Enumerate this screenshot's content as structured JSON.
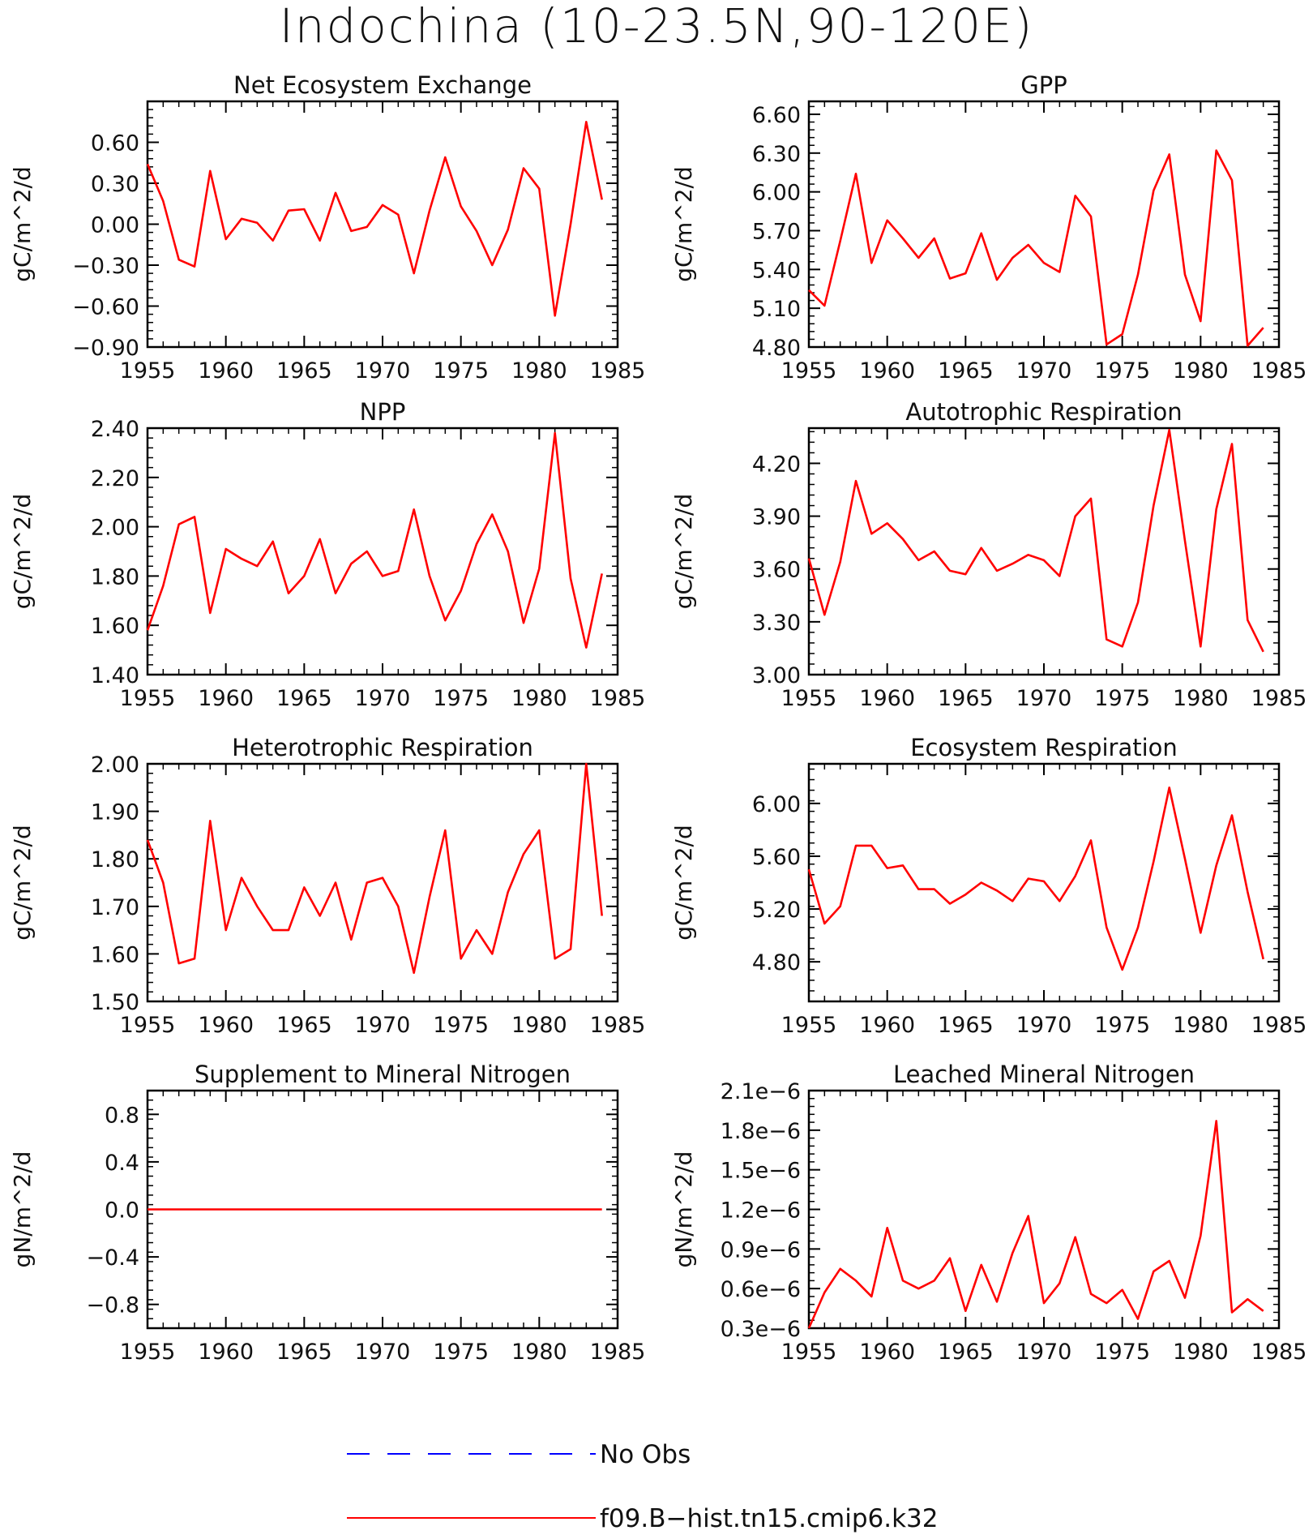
{
  "title": "Indochina (10-23.5N,90-120E)",
  "legend": {
    "entries": [
      {
        "label": "No Obs",
        "color": "#0000ff",
        "dash": true
      },
      {
        "label": "f09.B-hist.tn15.cmip6.k32",
        "color": "#ff0000",
        "dash": false
      }
    ]
  },
  "chart_data": [
    {
      "type": "line",
      "title": "Net Ecosystem Exchange",
      "ylabel": "gC/m^2/d",
      "xlim": [
        1955,
        1985
      ],
      "ylim": [
        -0.9,
        0.9
      ],
      "xticks": [
        1955,
        1960,
        1965,
        1970,
        1975,
        1980,
        1985
      ],
      "yticks": [
        -0.9,
        -0.6,
        -0.3,
        0.0,
        0.3,
        0.6
      ],
      "ytick_labels": [
        "-0.90",
        "-0.60",
        "-0.30",
        "0.00",
        "0.30",
        "0.60"
      ],
      "series": [
        {
          "name": "f09.B-hist.tn15.cmip6.k32",
          "color": "#ff0000",
          "x": [
            1955,
            1956,
            1957,
            1958,
            1959,
            1960,
            1961,
            1962,
            1963,
            1964,
            1965,
            1966,
            1967,
            1968,
            1969,
            1970,
            1971,
            1972,
            1973,
            1974,
            1975,
            1976,
            1977,
            1978,
            1979,
            1980,
            1981,
            1982,
            1983,
            1984
          ],
          "y": [
            0.44,
            0.17,
            -0.26,
            -0.31,
            0.39,
            -0.11,
            0.04,
            0.01,
            -0.12,
            0.1,
            0.11,
            -0.12,
            0.23,
            -0.05,
            -0.02,
            0.14,
            0.07,
            -0.36,
            0.1,
            0.49,
            0.13,
            -0.05,
            -0.3,
            -0.04,
            0.41,
            0.26,
            -0.67,
            0.0,
            0.75,
            0.18
          ]
        }
      ]
    },
    {
      "type": "line",
      "title": "GPP",
      "ylabel": "gC/m^2/d",
      "xlim": [
        1955,
        1985
      ],
      "ylim": [
        4.8,
        6.7
      ],
      "xticks": [
        1955,
        1960,
        1965,
        1970,
        1975,
        1980,
        1985
      ],
      "yticks": [
        4.8,
        5.1,
        5.4,
        5.7,
        6.0,
        6.3,
        6.6
      ],
      "ytick_labels": [
        "4.80",
        "5.10",
        "5.40",
        "5.70",
        "6.00",
        "6.30",
        "6.60"
      ],
      "series": [
        {
          "name": "f09.B-hist.tn15.cmip6.k32",
          "color": "#ff0000",
          "x": [
            1955,
            1956,
            1957,
            1958,
            1959,
            1960,
            1961,
            1962,
            1963,
            1964,
            1965,
            1966,
            1967,
            1968,
            1969,
            1970,
            1971,
            1972,
            1973,
            1974,
            1975,
            1976,
            1977,
            1978,
            1979,
            1980,
            1981,
            1982,
            1983,
            1984
          ],
          "y": [
            5.24,
            5.12,
            5.62,
            6.14,
            5.45,
            5.78,
            5.64,
            5.49,
            5.64,
            5.33,
            5.37,
            5.68,
            5.32,
            5.49,
            5.59,
            5.45,
            5.38,
            5.97,
            5.81,
            4.82,
            4.9,
            5.36,
            6.01,
            6.29,
            5.36,
            5.0,
            6.32,
            6.09,
            4.81,
            4.95
          ]
        }
      ]
    },
    {
      "type": "line",
      "title": "NPP",
      "ylabel": "gC/m^2/d",
      "xlim": [
        1955,
        1985
      ],
      "ylim": [
        1.4,
        2.4
      ],
      "xticks": [
        1955,
        1960,
        1965,
        1970,
        1975,
        1980,
        1985
      ],
      "yticks": [
        1.4,
        1.6,
        1.8,
        2.0,
        2.2,
        2.4
      ],
      "ytick_labels": [
        "1.40",
        "1.60",
        "1.80",
        "2.00",
        "2.20",
        "2.40"
      ],
      "series": [
        {
          "name": "f09.B-hist.tn15.cmip6.k32",
          "color": "#ff0000",
          "x": [
            1955,
            1956,
            1957,
            1958,
            1959,
            1960,
            1961,
            1962,
            1963,
            1964,
            1965,
            1966,
            1967,
            1968,
            1969,
            1970,
            1971,
            1972,
            1973,
            1974,
            1975,
            1976,
            1977,
            1978,
            1979,
            1980,
            1981,
            1982,
            1983,
            1984
          ],
          "y": [
            1.58,
            1.76,
            2.01,
            2.04,
            1.65,
            1.91,
            1.87,
            1.84,
            1.94,
            1.73,
            1.8,
            1.95,
            1.73,
            1.85,
            1.9,
            1.8,
            1.82,
            2.07,
            1.8,
            1.62,
            1.74,
            1.93,
            2.05,
            1.9,
            1.61,
            1.83,
            2.38,
            1.79,
            1.51,
            1.81
          ]
        }
      ]
    },
    {
      "type": "line",
      "title": "Autotrophic Respiration",
      "ylabel": "gC/m^2/d",
      "xlim": [
        1955,
        1985
      ],
      "ylim": [
        3.0,
        4.4
      ],
      "xticks": [
        1955,
        1960,
        1965,
        1970,
        1975,
        1980,
        1985
      ],
      "yticks": [
        3.0,
        3.3,
        3.6,
        3.9,
        4.2
      ],
      "ytick_labels": [
        "3.00",
        "3.30",
        "3.60",
        "3.90",
        "4.20"
      ],
      "series": [
        {
          "name": "f09.B-hist.tn15.cmip6.k32",
          "color": "#ff0000",
          "x": [
            1955,
            1956,
            1957,
            1958,
            1959,
            1960,
            1961,
            1962,
            1963,
            1964,
            1965,
            1966,
            1967,
            1968,
            1969,
            1970,
            1971,
            1972,
            1973,
            1974,
            1975,
            1976,
            1977,
            1978,
            1979,
            1980,
            1981,
            1982,
            1983,
            1984
          ],
          "y": [
            3.66,
            3.34,
            3.64,
            4.1,
            3.8,
            3.86,
            3.77,
            3.65,
            3.7,
            3.59,
            3.57,
            3.72,
            3.59,
            3.63,
            3.68,
            3.65,
            3.56,
            3.9,
            4.0,
            3.2,
            3.16,
            3.41,
            3.96,
            4.39,
            3.76,
            3.16,
            3.94,
            4.31,
            3.31,
            3.13
          ]
        }
      ]
    },
    {
      "type": "line",
      "title": "Heterotrophic Respiration",
      "ylabel": "gC/m^2/d",
      "xlim": [
        1955,
        1985
      ],
      "ylim": [
        1.5,
        2.0
      ],
      "xticks": [
        1955,
        1960,
        1965,
        1970,
        1975,
        1980,
        1985
      ],
      "yticks": [
        1.5,
        1.6,
        1.7,
        1.8,
        1.9,
        2.0
      ],
      "ytick_labels": [
        "1.50",
        "1.60",
        "1.70",
        "1.80",
        "1.90",
        "2.00"
      ],
      "series": [
        {
          "name": "f09.B-hist.tn15.cmip6.k32",
          "color": "#ff0000",
          "x": [
            1955,
            1956,
            1957,
            1958,
            1959,
            1960,
            1961,
            1962,
            1963,
            1964,
            1965,
            1966,
            1967,
            1968,
            1969,
            1970,
            1971,
            1972,
            1973,
            1974,
            1975,
            1976,
            1977,
            1978,
            1979,
            1980,
            1981,
            1982,
            1983,
            1984
          ],
          "y": [
            1.84,
            1.75,
            1.58,
            1.59,
            1.88,
            1.65,
            1.76,
            1.7,
            1.65,
            1.65,
            1.74,
            1.68,
            1.75,
            1.63,
            1.75,
            1.76,
            1.7,
            1.56,
            1.72,
            1.86,
            1.59,
            1.65,
            1.6,
            1.73,
            1.81,
            1.86,
            1.59,
            1.61,
            2.0,
            1.68
          ]
        }
      ]
    },
    {
      "type": "line",
      "title": "Ecosystem Respiration",
      "ylabel": "gC/m^2/d",
      "xlim": [
        1955,
        1985
      ],
      "ylim": [
        4.5,
        6.3
      ],
      "xticks": [
        1955,
        1960,
        1965,
        1970,
        1975,
        1980,
        1985
      ],
      "yticks": [
        4.8,
        5.2,
        5.6,
        6.0
      ],
      "ytick_labels": [
        "4.80",
        "5.20",
        "5.60",
        "6.00"
      ],
      "series": [
        {
          "name": "f09.B-hist.tn15.cmip6.k32",
          "color": "#ff0000",
          "x": [
            1955,
            1956,
            1957,
            1958,
            1959,
            1960,
            1961,
            1962,
            1963,
            1964,
            1965,
            1966,
            1967,
            1968,
            1969,
            1970,
            1971,
            1972,
            1973,
            1974,
            1975,
            1976,
            1977,
            1978,
            1979,
            1980,
            1981,
            1982,
            1983,
            1984
          ],
          "y": [
            5.5,
            5.09,
            5.22,
            5.68,
            5.68,
            5.51,
            5.53,
            5.35,
            5.35,
            5.24,
            5.31,
            5.4,
            5.34,
            5.26,
            5.43,
            5.41,
            5.26,
            5.45,
            5.72,
            5.06,
            4.74,
            5.06,
            5.56,
            6.12,
            5.58,
            5.02,
            5.53,
            5.91,
            5.33,
            4.82
          ]
        }
      ]
    },
    {
      "type": "line",
      "title": "Supplement to Mineral Nitrogen",
      "ylabel": "gN/m^2/d",
      "xlim": [
        1955,
        1985
      ],
      "ylim": [
        -1.0,
        1.0
      ],
      "xticks": [
        1955,
        1960,
        1965,
        1970,
        1975,
        1980,
        1985
      ],
      "yticks": [
        -0.8,
        -0.4,
        0.0,
        0.4,
        0.8
      ],
      "ytick_labels": [
        "-0.8",
        "-0.4",
        "0.0",
        "0.4",
        "0.8"
      ],
      "series": [
        {
          "name": "f09.B-hist.tn15.cmip6.k32",
          "color": "#ff0000",
          "x": [
            1955,
            1956,
            1957,
            1958,
            1959,
            1960,
            1961,
            1962,
            1963,
            1964,
            1965,
            1966,
            1967,
            1968,
            1969,
            1970,
            1971,
            1972,
            1973,
            1974,
            1975,
            1976,
            1977,
            1978,
            1979,
            1980,
            1981,
            1982,
            1983,
            1984
          ],
          "y": [
            0,
            0,
            0,
            0,
            0,
            0,
            0,
            0,
            0,
            0,
            0,
            0,
            0,
            0,
            0,
            0,
            0,
            0,
            0,
            0,
            0,
            0,
            0,
            0,
            0,
            0,
            0,
            0,
            0,
            0
          ]
        }
      ]
    },
    {
      "type": "line",
      "title": "Leached Mineral Nitrogen",
      "ylabel": "gN/m^2/d",
      "xlim": [
        1955,
        1985
      ],
      "ylim": [
        3e-07,
        2.1e-06
      ],
      "xticks": [
        1955,
        1960,
        1965,
        1970,
        1975,
        1980,
        1985
      ],
      "yticks": [
        3e-07,
        6e-07,
        9e-07,
        1.2e-06,
        1.5e-06,
        1.8e-06,
        2.1e-06
      ],
      "ytick_labels": [
        "0.3e-6",
        "0.6e-6",
        "0.9e-6",
        "1.2e-6",
        "1.5e-6",
        "1.8e-6",
        "2.1e-6"
      ],
      "series": [
        {
          "name": "f09.B-hist.tn15.cmip6.k32",
          "color": "#ff0000",
          "x": [
            1955,
            1956,
            1957,
            1958,
            1959,
            1960,
            1961,
            1962,
            1963,
            1964,
            1965,
            1966,
            1967,
            1968,
            1969,
            1970,
            1971,
            1972,
            1973,
            1974,
            1975,
            1976,
            1977,
            1978,
            1979,
            1980,
            1981,
            1982,
            1983,
            1984
          ],
          "y": [
            3e-07,
            5.7e-07,
            7.5e-07,
            6.6e-07,
            5.4e-07,
            1.06e-06,
            6.6e-07,
            6e-07,
            6.6e-07,
            8.3e-07,
            4.3e-07,
            7.8e-07,
            5e-07,
            8.7e-07,
            1.15e-06,
            4.9e-07,
            6.4e-07,
            9.9e-07,
            5.6e-07,
            4.9e-07,
            5.9e-07,
            3.7e-07,
            7.3e-07,
            8.1e-07,
            5.3e-07,
            1e-06,
            1.87e-06,
            4.2e-07,
            5.2e-07,
            4.3e-07
          ]
        }
      ]
    }
  ]
}
